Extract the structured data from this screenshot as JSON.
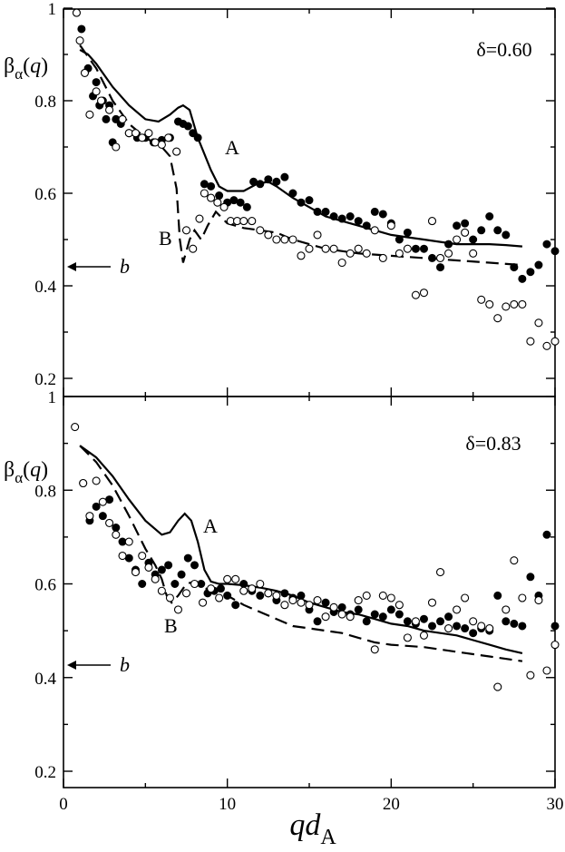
{
  "chart_data": [
    {
      "type": "scatter",
      "panel": "top",
      "annotation": "δ=0.60",
      "ylabel": {
        "base": "β",
        "sub": "α",
        "paren": "(q)"
      },
      "xlim": [
        0,
        30
      ],
      "ylim": [
        0.2,
        1.0
      ],
      "yticks": [
        0.2,
        0.4,
        0.6,
        0.8,
        1
      ],
      "ytick_labels": [
        "0.2",
        "0.4",
        "0.6",
        "0.8",
        "1"
      ],
      "curve_labels": [
        "A",
        "B"
      ],
      "asymptote": {
        "label": "b",
        "value": 0.445
      },
      "series": [
        {
          "name": "A",
          "style": "solid",
          "x": [
            1.0,
            1.5,
            2.0,
            3.0,
            4.0,
            5.0,
            5.8,
            6.5,
            7.0,
            7.3,
            7.7,
            8.2,
            9.0,
            9.5,
            10.0,
            11.0,
            11.8,
            12.5,
            13.0,
            14.0,
            15.0,
            16.0,
            17.0,
            18.0,
            19.0,
            20.0,
            21.0,
            22.0,
            23.0,
            24.0,
            25.0,
            26.0,
            27.0,
            28.0
          ],
          "y": [
            0.91,
            0.9,
            0.88,
            0.83,
            0.79,
            0.76,
            0.755,
            0.77,
            0.785,
            0.79,
            0.78,
            0.72,
            0.65,
            0.615,
            0.605,
            0.605,
            0.62,
            0.625,
            0.615,
            0.59,
            0.57,
            0.55,
            0.54,
            0.53,
            0.52,
            0.51,
            0.505,
            0.5,
            0.495,
            0.49,
            0.49,
            0.49,
            0.488,
            0.485
          ]
        },
        {
          "name": "B",
          "style": "dashed",
          "x": [
            1.0,
            2.0,
            3.0,
            4.0,
            5.0,
            6.0,
            6.5,
            6.9,
            7.1,
            7.3,
            7.7,
            8.0,
            8.4,
            8.8,
            9.3,
            10.0,
            11.0,
            12.0,
            13.0,
            14.0,
            15.0,
            16.0,
            18.0,
            20.0,
            22.0,
            24.0,
            26.0,
            28.0
          ],
          "y": [
            0.92,
            0.87,
            0.8,
            0.75,
            0.72,
            0.7,
            0.68,
            0.61,
            0.5,
            0.45,
            0.5,
            0.52,
            0.5,
            0.53,
            0.56,
            0.535,
            0.525,
            0.52,
            0.515,
            0.5,
            0.49,
            0.48,
            0.47,
            0.465,
            0.46,
            0.455,
            0.45,
            0.445
          ]
        },
        {
          "name": "filled",
          "style": "filled-circle",
          "x": [
            1.1,
            1.5,
            1.8,
            2.0,
            2.2,
            2.4,
            2.6,
            2.8,
            3.0,
            3.2,
            3.5,
            4.0,
            4.5,
            5.0,
            5.5,
            6.0,
            6.5,
            7.0,
            7.3,
            7.6,
            7.9,
            8.2,
            8.6,
            9.0,
            9.5,
            10.0,
            10.4,
            10.8,
            11.2,
            11.6,
            12.0,
            12.5,
            13.0,
            13.5,
            14.0,
            14.5,
            15.0,
            15.5,
            16.0,
            16.5,
            17.0,
            17.5,
            18.0,
            18.5,
            19.0,
            19.5,
            20.0,
            20.5,
            21.0,
            21.5,
            22.0,
            22.5,
            23.0,
            23.5,
            24.0,
            24.5,
            25.0,
            25.5,
            26.0,
            26.5,
            27.0,
            27.5,
            28.0,
            28.5,
            29.0,
            29.5,
            30.0
          ],
          "y": [
            0.955,
            0.87,
            0.81,
            0.84,
            0.79,
            0.8,
            0.76,
            0.79,
            0.71,
            0.76,
            0.75,
            0.73,
            0.72,
            0.72,
            0.71,
            0.715,
            0.72,
            0.755,
            0.75,
            0.745,
            0.73,
            0.72,
            0.62,
            0.615,
            0.595,
            0.58,
            0.585,
            0.58,
            0.57,
            0.625,
            0.62,
            0.63,
            0.625,
            0.635,
            0.6,
            0.58,
            0.585,
            0.56,
            0.56,
            0.55,
            0.545,
            0.55,
            0.54,
            0.53,
            0.56,
            0.555,
            0.535,
            0.5,
            0.515,
            0.48,
            0.48,
            0.46,
            0.44,
            0.49,
            0.53,
            0.535,
            0.5,
            0.52,
            0.55,
            0.52,
            0.51,
            0.44,
            0.415,
            0.43,
            0.445,
            0.49,
            0.475
          ]
        },
        {
          "name": "open",
          "style": "open-circle",
          "x": [
            0.8,
            1.0,
            1.3,
            1.6,
            2.0,
            2.3,
            2.8,
            3.2,
            3.6,
            4.0,
            4.4,
            4.8,
            5.2,
            5.6,
            6.0,
            6.4,
            6.9,
            7.5,
            7.9,
            8.3,
            8.6,
            9.0,
            9.4,
            9.8,
            10.2,
            10.6,
            11.0,
            11.5,
            12.0,
            12.5,
            13.0,
            13.5,
            14.0,
            14.5,
            15.0,
            15.5,
            16.0,
            16.5,
            17.0,
            17.5,
            18.0,
            18.5,
            19.0,
            19.5,
            20.0,
            20.5,
            21.0,
            21.5,
            22.0,
            22.5,
            23.0,
            23.5,
            24.0,
            24.5,
            25.0,
            25.5,
            26.0,
            26.5,
            27.0,
            27.5,
            28.0,
            28.5,
            29.0,
            29.5,
            30.0
          ],
          "y": [
            0.99,
            0.93,
            0.86,
            0.77,
            0.82,
            0.8,
            0.78,
            0.7,
            0.76,
            0.73,
            0.73,
            0.72,
            0.73,
            0.71,
            0.705,
            0.72,
            0.69,
            0.52,
            0.48,
            0.545,
            0.6,
            0.59,
            0.58,
            0.57,
            0.54,
            0.54,
            0.54,
            0.54,
            0.52,
            0.51,
            0.5,
            0.5,
            0.5,
            0.465,
            0.48,
            0.51,
            0.48,
            0.48,
            0.45,
            0.47,
            0.48,
            0.47,
            0.52,
            0.46,
            0.53,
            0.47,
            0.48,
            0.38,
            0.385,
            0.54,
            0.46,
            0.47,
            0.5,
            0.515,
            0.47,
            0.37,
            0.36,
            0.33,
            0.355,
            0.36,
            0.36,
            0.28,
            0.32,
            0.27,
            0.28
          ]
        }
      ]
    },
    {
      "type": "scatter",
      "panel": "bottom",
      "annotation": "δ=0.83",
      "ylabel": {
        "base": "β",
        "sub": "α",
        "paren": "(q)"
      },
      "xlabel": {
        "base": "qd",
        "sub": "A"
      },
      "xlim": [
        0,
        30
      ],
      "ylim": [
        0.2,
        1.0
      ],
      "xticks": [
        0,
        10,
        20,
        30
      ],
      "xtick_labels": [
        "0",
        "10",
        "20",
        "30"
      ],
      "yticks": [
        0.2,
        0.4,
        0.6,
        0.8,
        1
      ],
      "ytick_labels": [
        "0.2",
        "0.4",
        "0.6",
        "0.8",
        "1"
      ],
      "curve_labels": [
        "A",
        "B"
      ],
      "asymptote": {
        "label": "b",
        "value": 0.445
      },
      "series": [
        {
          "name": "A",
          "style": "solid",
          "x": [
            1.0,
            2.0,
            3.0,
            4.0,
            5.0,
            6.0,
            6.5,
            7.0,
            7.4,
            7.8,
            8.2,
            8.6,
            9.0,
            9.5,
            10.0,
            11.0,
            12.0,
            13.0,
            14.0,
            15.0,
            16.0,
            17.0,
            18.0,
            19.0,
            20.0,
            21.0,
            22.0,
            23.0,
            24.0,
            25.0,
            26.0,
            27.0,
            28.0
          ],
          "y": [
            0.895,
            0.87,
            0.83,
            0.78,
            0.735,
            0.705,
            0.71,
            0.735,
            0.75,
            0.735,
            0.69,
            0.63,
            0.605,
            0.6,
            0.6,
            0.597,
            0.592,
            0.585,
            0.575,
            0.56,
            0.55,
            0.54,
            0.535,
            0.525,
            0.515,
            0.51,
            0.5,
            0.495,
            0.49,
            0.48,
            0.47,
            0.46,
            0.452
          ]
        },
        {
          "name": "B",
          "style": "dashed",
          "x": [
            1.0,
            2.0,
            3.0,
            4.0,
            5.0,
            5.6,
            6.0,
            6.3,
            6.6,
            7.0,
            7.5,
            8.0,
            8.4,
            9.0,
            10.0,
            11.0,
            12.0,
            13.0,
            14.0,
            15.0,
            16.0,
            17.0,
            18.0,
            19.0,
            20.0,
            22.0,
            24.0,
            26.0,
            28.0
          ],
          "y": [
            0.895,
            0.86,
            0.81,
            0.745,
            0.675,
            0.64,
            0.61,
            0.575,
            0.56,
            0.575,
            0.6,
            0.605,
            0.595,
            0.585,
            0.575,
            0.555,
            0.54,
            0.525,
            0.51,
            0.505,
            0.5,
            0.495,
            0.485,
            0.475,
            0.47,
            0.465,
            0.455,
            0.445,
            0.435
          ]
        },
        {
          "name": "filled",
          "style": "filled-circle",
          "x": [
            1.2,
            1.6,
            2.0,
            2.4,
            2.8,
            3.2,
            3.6,
            4.0,
            4.4,
            4.8,
            5.2,
            5.6,
            6.0,
            6.4,
            6.8,
            7.2,
            7.6,
            8.0,
            8.4,
            8.8,
            9.2,
            9.6,
            10.0,
            10.5,
            11.0,
            11.5,
            12.0,
            12.5,
            13.0,
            13.5,
            14.0,
            14.5,
            15.0,
            15.5,
            16.0,
            16.5,
            17.0,
            17.5,
            18.0,
            18.5,
            19.0,
            19.5,
            20.0,
            20.5,
            21.0,
            21.5,
            22.0,
            22.5,
            23.0,
            23.5,
            24.0,
            24.5,
            25.0,
            25.5,
            26.0,
            26.5,
            27.0,
            27.5,
            28.0,
            28.5,
            29.0,
            29.5,
            30.0
          ],
          "y": [
            0.815,
            0.735,
            0.765,
            0.745,
            0.78,
            0.72,
            0.69,
            0.655,
            0.63,
            0.6,
            0.645,
            0.62,
            0.63,
            0.64,
            0.6,
            0.62,
            0.655,
            0.64,
            0.6,
            0.58,
            0.585,
            0.59,
            0.575,
            0.555,
            0.6,
            0.585,
            0.575,
            0.58,
            0.565,
            0.58,
            0.57,
            0.575,
            0.545,
            0.52,
            0.56,
            0.54,
            0.55,
            0.535,
            0.545,
            0.52,
            0.535,
            0.53,
            0.545,
            0.535,
            0.52,
            0.515,
            0.525,
            0.51,
            0.52,
            0.53,
            0.51,
            0.505,
            0.495,
            0.505,
            0.5,
            0.575,
            0.52,
            0.515,
            0.51,
            0.615,
            0.575,
            0.705,
            0.51
          ]
        },
        {
          "name": "open",
          "style": "open-circle",
          "x": [
            0.7,
            1.2,
            1.6,
            2.0,
            2.4,
            2.8,
            3.2,
            3.6,
            4.0,
            4.4,
            4.8,
            5.2,
            5.6,
            6.0,
            6.5,
            7.0,
            7.5,
            8.0,
            8.5,
            9.0,
            9.5,
            10.0,
            10.5,
            11.0,
            11.5,
            12.0,
            12.5,
            13.0,
            13.5,
            14.0,
            14.5,
            15.0,
            15.5,
            16.0,
            16.5,
            17.0,
            17.5,
            18.0,
            18.5,
            19.0,
            19.5,
            20.0,
            20.5,
            21.0,
            21.5,
            22.0,
            22.5,
            23.0,
            23.5,
            24.0,
            24.5,
            25.0,
            25.5,
            26.0,
            26.5,
            27.0,
            27.5,
            28.0,
            28.5,
            29.0,
            29.5,
            30.0
          ],
          "y": [
            0.935,
            0.815,
            0.745,
            0.82,
            0.775,
            0.73,
            0.705,
            0.66,
            0.69,
            0.625,
            0.66,
            0.635,
            0.61,
            0.585,
            0.57,
            0.545,
            0.58,
            0.6,
            0.56,
            0.59,
            0.57,
            0.61,
            0.61,
            0.585,
            0.59,
            0.6,
            0.58,
            0.575,
            0.555,
            0.565,
            0.56,
            0.555,
            0.565,
            0.53,
            0.55,
            0.535,
            0.53,
            0.565,
            0.575,
            0.46,
            0.575,
            0.57,
            0.555,
            0.485,
            0.52,
            0.49,
            0.56,
            0.625,
            0.505,
            0.545,
            0.57,
            0.52,
            0.51,
            0.505,
            0.38,
            0.545,
            0.65,
            0.57,
            0.405,
            0.565,
            0.415,
            0.47
          ]
        }
      ]
    }
  ]
}
